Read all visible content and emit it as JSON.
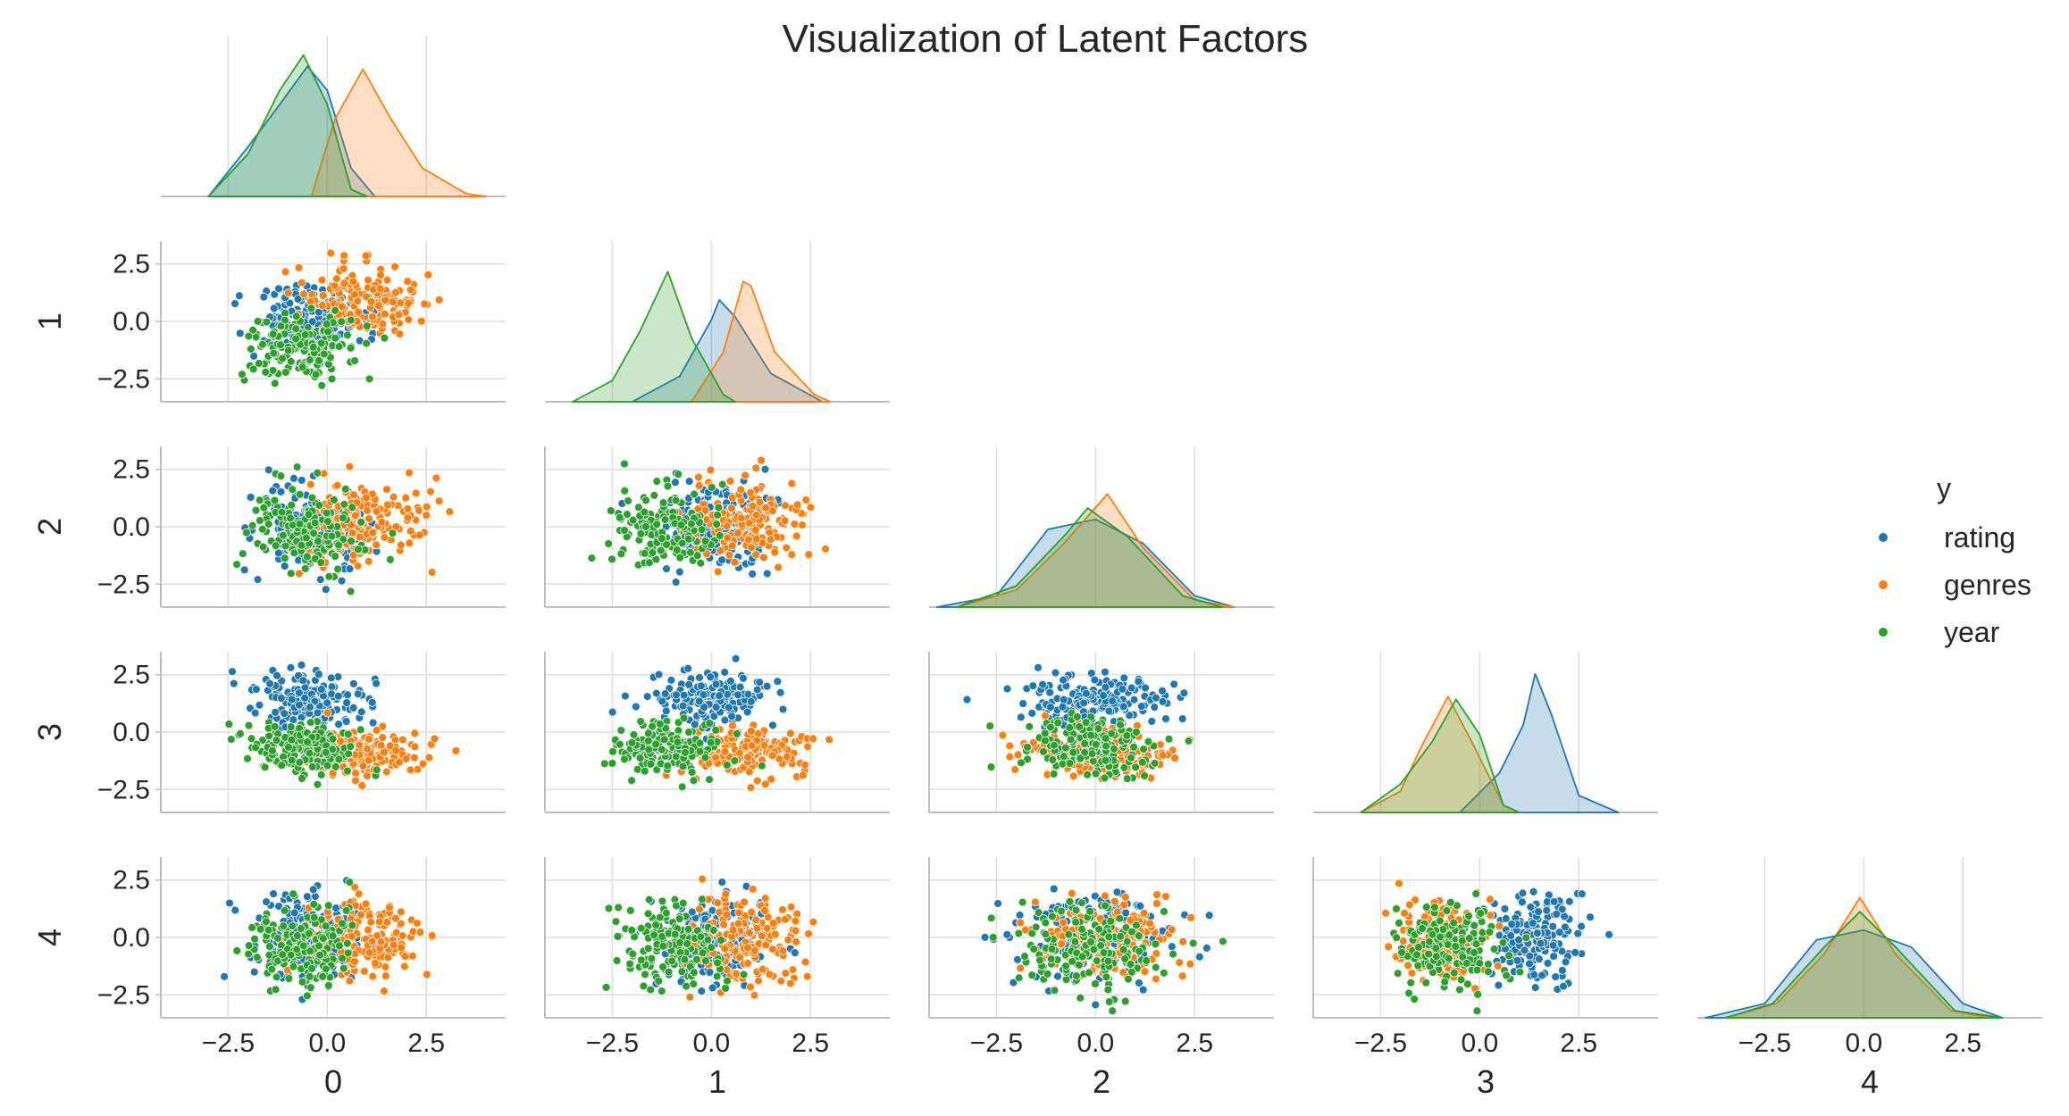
{
  "chart_data": {
    "type": "scatter",
    "title": "Visualization of Latent Factors",
    "variables": [
      "0",
      "1",
      "2",
      "3",
      "4"
    ],
    "axis_ticks": [
      "−2.5",
      "0.0",
      "2.5"
    ],
    "ylim": [
      -3.5,
      3.5
    ],
    "grid": true,
    "legend": {
      "title": "y",
      "placement": "right"
    },
    "series": [
      {
        "name": "rating",
        "color": "#1f77b4",
        "mean": [
          -0.5,
          0.1,
          0.0,
          1.4,
          0.0
        ],
        "sd": [
          0.7,
          0.75,
          0.95,
          0.55,
          1.0
        ],
        "kde": [
          [
            [
              -3.0,
              0.0
            ],
            [
              -2.0,
              0.35
            ],
            [
              -1.2,
              0.65
            ],
            [
              -0.5,
              0.92
            ],
            [
              0.0,
              0.75
            ],
            [
              0.6,
              0.2
            ],
            [
              1.2,
              0.0
            ]
          ],
          [
            [
              -2.0,
              0.0
            ],
            [
              -0.8,
              0.18
            ],
            [
              0.0,
              0.58
            ],
            [
              0.2,
              0.72
            ],
            [
              0.6,
              0.6
            ],
            [
              1.5,
              0.2
            ],
            [
              2.8,
              0.0
            ]
          ],
          [
            [
              -4.0,
              0.0
            ],
            [
              -2.5,
              0.08
            ],
            [
              -1.2,
              0.55
            ],
            [
              0.0,
              0.62
            ],
            [
              1.2,
              0.45
            ],
            [
              2.5,
              0.08
            ],
            [
              3.5,
              0.0
            ]
          ],
          [
            [
              -0.5,
              0.0
            ],
            [
              0.5,
              0.28
            ],
            [
              1.1,
              0.62
            ],
            [
              1.4,
              0.98
            ],
            [
              1.8,
              0.7
            ],
            [
              2.5,
              0.12
            ],
            [
              3.5,
              0.0
            ]
          ],
          [
            [
              -4.0,
              0.0
            ],
            [
              -2.5,
              0.1
            ],
            [
              -1.2,
              0.55
            ],
            [
              0.0,
              0.62
            ],
            [
              1.2,
              0.5
            ],
            [
              2.5,
              0.1
            ],
            [
              3.5,
              0.0
            ]
          ]
        ]
      },
      {
        "name": "genres",
        "color": "#ff7f0e",
        "mean": [
          0.9,
          0.9,
          0.2,
          -0.9,
          -0.1
        ],
        "sd": [
          0.75,
          0.75,
          0.95,
          0.5,
          0.9
        ],
        "kde": [
          [
            [
              -0.4,
              0.0
            ],
            [
              0.2,
              0.55
            ],
            [
              0.9,
              0.9
            ],
            [
              1.6,
              0.55
            ],
            [
              2.4,
              0.2
            ],
            [
              3.5,
              0.02
            ],
            [
              4.0,
              0.0
            ]
          ],
          [
            [
              -0.5,
              0.0
            ],
            [
              0.3,
              0.35
            ],
            [
              0.8,
              0.85
            ],
            [
              1.0,
              0.82
            ],
            [
              1.6,
              0.35
            ],
            [
              2.6,
              0.05
            ],
            [
              3.0,
              0.0
            ]
          ],
          [
            [
              -3.5,
              0.0
            ],
            [
              -2.0,
              0.12
            ],
            [
              -0.8,
              0.45
            ],
            [
              0.3,
              0.8
            ],
            [
              1.2,
              0.42
            ],
            [
              2.5,
              0.05
            ],
            [
              3.5,
              0.0
            ]
          ],
          [
            [
              -3.0,
              0.0
            ],
            [
              -2.0,
              0.15
            ],
            [
              -1.5,
              0.45
            ],
            [
              -0.8,
              0.82
            ],
            [
              -0.2,
              0.5
            ],
            [
              0.6,
              0.05
            ],
            [
              1.0,
              0.0
            ]
          ],
          [
            [
              -3.5,
              0.0
            ],
            [
              -2.2,
              0.1
            ],
            [
              -1.0,
              0.45
            ],
            [
              -0.1,
              0.85
            ],
            [
              0.8,
              0.45
            ],
            [
              2.2,
              0.05
            ],
            [
              3.2,
              0.0
            ]
          ]
        ]
      },
      {
        "name": "year",
        "color": "#2ca02c",
        "mean": [
          -0.6,
          -1.1,
          -0.2,
          -0.7,
          -0.4
        ],
        "sd": [
          0.7,
          0.7,
          0.9,
          0.6,
          0.9
        ],
        "kde": [
          [
            [
              -3.0,
              0.0
            ],
            [
              -2.0,
              0.3
            ],
            [
              -1.2,
              0.75
            ],
            [
              -0.6,
              1.0
            ],
            [
              0.0,
              0.65
            ],
            [
              0.6,
              0.05
            ],
            [
              1.0,
              0.0
            ]
          ],
          [
            [
              -3.5,
              0.0
            ],
            [
              -2.5,
              0.15
            ],
            [
              -1.8,
              0.5
            ],
            [
              -1.1,
              0.92
            ],
            [
              -0.5,
              0.45
            ],
            [
              0.3,
              0.05
            ],
            [
              0.6,
              0.0
            ]
          ],
          [
            [
              -3.5,
              0.0
            ],
            [
              -2.0,
              0.15
            ],
            [
              -0.8,
              0.5
            ],
            [
              -0.2,
              0.7
            ],
            [
              0.8,
              0.5
            ],
            [
              2.2,
              0.08
            ],
            [
              3.2,
              0.0
            ]
          ],
          [
            [
              -3.0,
              0.0
            ],
            [
              -2.0,
              0.2
            ],
            [
              -1.2,
              0.5
            ],
            [
              -0.6,
              0.8
            ],
            [
              0.0,
              0.55
            ],
            [
              0.6,
              0.05
            ],
            [
              1.0,
              0.0
            ]
          ],
          [
            [
              -3.5,
              0.0
            ],
            [
              -2.3,
              0.1
            ],
            [
              -1.0,
              0.5
            ],
            [
              -0.1,
              0.75
            ],
            [
              0.8,
              0.5
            ],
            [
              2.3,
              0.05
            ],
            [
              3.5,
              0.0
            ]
          ]
        ]
      }
    ]
  }
}
